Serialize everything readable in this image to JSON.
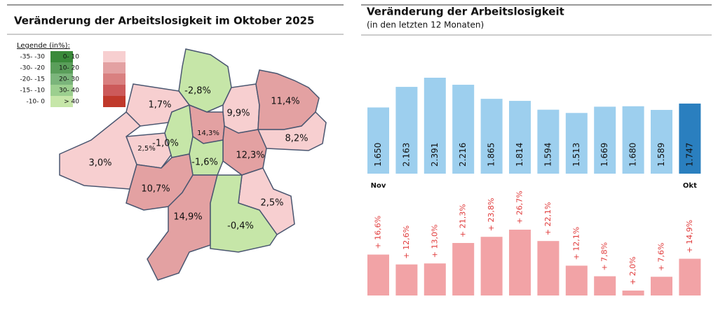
{
  "chart_data": [
    {
      "type": "choropleth",
      "title": "Veränderung der Arbeitslosigkeit im Oktober 2025",
      "legend_title": "Legende (in%):",
      "legend": [
        {
          "label": "-35- -30",
          "color": "#3a8a3a"
        },
        {
          "label": "-30- -20",
          "color": "#5a9e5a"
        },
        {
          "label": "-20- -15",
          "color": "#7bb57b"
        },
        {
          "label": "-15- -10",
          "color": "#9ccf8f"
        },
        {
          "label": "-10- 0",
          "color": "#c6e6a8"
        },
        {
          "label": "0- 10",
          "color": "#f7cfd0"
        },
        {
          "label": "10- 20",
          "color": "#e3a1a2"
        },
        {
          "label": "20- 30",
          "color": "#d98080"
        },
        {
          "label": "30- 40",
          "color": "#cc5a5a"
        },
        {
          "label": "> 40",
          "color": "#c0392b"
        }
      ],
      "values": [
        -2.8,
        1.7,
        9.9,
        11.4,
        14.3,
        8.2,
        2.5,
        3.0,
        -1.0,
        12.3,
        -1.6,
        10.7,
        2.5,
        14.9,
        -0.4
      ],
      "value_labels": [
        "-2,8%",
        "1,7%",
        "9,9%",
        "11,4%",
        "14,3%",
        "8,2%",
        "2,5%",
        "3,0%",
        "-1,0%",
        "12,3%",
        "-1,6%",
        "10,7%",
        "2,5%",
        "14,9%",
        "-0,4%"
      ],
      "colors": [
        "#c6e6a8",
        "#f7cfd0",
        "#f7cfd0",
        "#e3a1a2",
        "#e3a1a2",
        "#f7cfd0",
        "#f7cfd0",
        "#f7cfd0",
        "#c6e6a8",
        "#e3a1a2",
        "#c6e6a8",
        "#e3a1a2",
        "#f7cfd0",
        "#e3a1a2",
        "#c6e6a8"
      ]
    },
    {
      "type": "bar",
      "title": "Veränderung der Arbeitslosigkeit",
      "subtitle": "(in den letzten 12 Monaten)",
      "categories": [
        "Nov",
        null,
        null,
        null,
        null,
        null,
        null,
        null,
        null,
        null,
        null,
        "Okt"
      ],
      "values": [
        1650,
        2163,
        2391,
        2216,
        1865,
        1814,
        1594,
        1513,
        1669,
        1680,
        1589,
        1747
      ],
      "value_labels": [
        "1.650",
        "2.163",
        "2.391",
        "2.216",
        "1.865",
        "1.814",
        "1.594",
        "1.513",
        "1.669",
        "1.680",
        "1.589",
        "1.747"
      ],
      "colors": [
        "#9dcfee",
        "#9dcfee",
        "#9dcfee",
        "#9dcfee",
        "#9dcfee",
        "#9dcfee",
        "#9dcfee",
        "#9dcfee",
        "#9dcfee",
        "#9dcfee",
        "#9dcfee",
        "#2a7fbf"
      ]
    },
    {
      "type": "bar",
      "color": "#f2a3a6",
      "label_color": "#e03a3a",
      "values": [
        16.6,
        12.6,
        13.0,
        21.3,
        23.8,
        26.7,
        22.1,
        12.1,
        7.8,
        2.0,
        7.6,
        14.9
      ],
      "value_labels": [
        "+ 16,6%",
        "+ 12,6%",
        "+ 13,0%",
        "+ 21,3%",
        "+ 23,8%",
        "+ 26,7%",
        "+ 22,1%",
        "+ 12,1%",
        "+ 7,8%",
        "+ 2,0%",
        "+ 7,6%",
        "+ 14,9%"
      ]
    }
  ]
}
